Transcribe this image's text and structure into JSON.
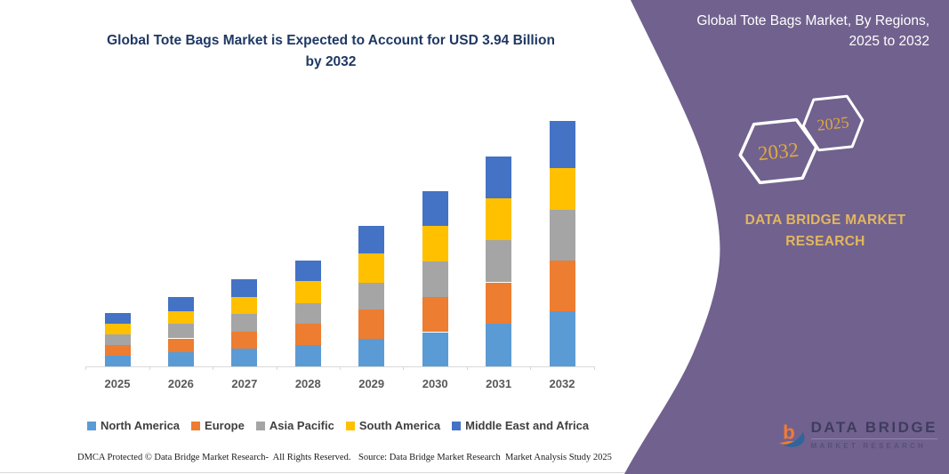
{
  "chart_data": {
    "type": "bar",
    "stacked": true,
    "title": "Global Tote Bags Market is Expected to Account for USD 3.94 Billion by 2032",
    "unit": "USD Billion",
    "categories": [
      "2025",
      "2026",
      "2027",
      "2028",
      "2029",
      "2030",
      "2031",
      "2032"
    ],
    "series": [
      {
        "name": "North America",
        "color": "#5B9BD5",
        "values": [
          0.17,
          0.23,
          0.28,
          0.34,
          0.44,
          0.55,
          0.68,
          0.89
        ]
      },
      {
        "name": "Europe",
        "color": "#ED7D31",
        "values": [
          0.17,
          0.22,
          0.28,
          0.34,
          0.47,
          0.56,
          0.67,
          0.81
        ]
      },
      {
        "name": "Asia Pacific",
        "color": "#A5A5A5",
        "values": [
          0.18,
          0.23,
          0.28,
          0.33,
          0.43,
          0.58,
          0.68,
          0.82
        ]
      },
      {
        "name": "South America",
        "color": "#FFC000",
        "values": [
          0.17,
          0.21,
          0.28,
          0.36,
          0.47,
          0.57,
          0.67,
          0.66
        ]
      },
      {
        "name": "Middle East and Africa",
        "color": "#4472C4",
        "values": [
          0.17,
          0.22,
          0.28,
          0.33,
          0.45,
          0.55,
          0.67,
          0.76
        ]
      }
    ],
    "totals_estimated": [
      0.86,
      1.11,
      1.4,
      1.7,
      2.26,
      2.81,
      3.37,
      3.94
    ],
    "ylim": [
      0,
      4.1
    ],
    "grid": false,
    "legend_position": "bottom",
    "xlabel": "",
    "ylabel": ""
  },
  "footer": {
    "left": "DMCA Protected © Data Bridge Market Research-  All Rights Reserved.",
    "right": "Source: Data Bridge Market Research  Market Analysis Study 2025"
  },
  "panel": {
    "title": "Global Tote Bags Market, By Regions, 2025 to 2032",
    "hexagons": {
      "front_label": "2032",
      "back_label": "2025"
    },
    "brand_heading": "DATA BRIDGE MARKET RESEARCH",
    "logo_name": "DATA BRIDGE",
    "logo_tagline": "MARKET RESEARCH",
    "colors": {
      "panel_background": "#71618E",
      "gold": "#DDA93F",
      "title_blue": "#1F3864"
    }
  }
}
